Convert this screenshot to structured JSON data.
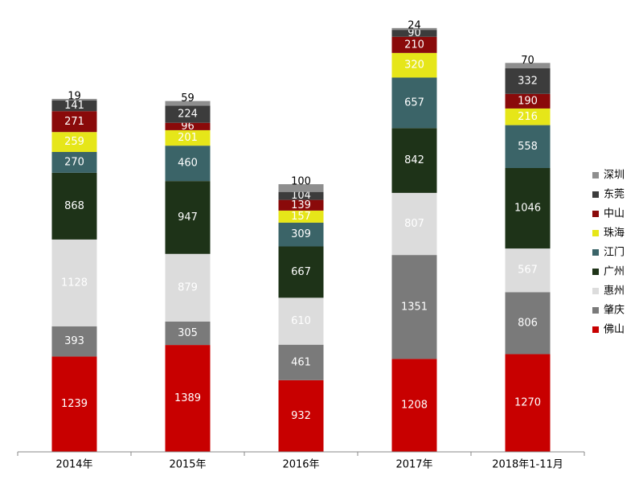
{
  "chart_data": {
    "type": "stacked_bar",
    "categories": [
      "2014年",
      "2015年",
      "2016年",
      "2017年",
      "2018年1-11月"
    ],
    "series": [
      {
        "name": "佛山",
        "color": "#c80000",
        "values": [
          1239,
          1389,
          932,
          1208,
          1270
        ]
      },
      {
        "name": "肇庆",
        "color": "#7a7a7a",
        "values": [
          393,
          305,
          461,
          1351,
          806
        ]
      },
      {
        "name": "惠州",
        "color": "#dcdcdc",
        "values": [
          1128,
          879,
          610,
          807,
          567
        ]
      },
      {
        "name": "广州",
        "color": "#1e3318",
        "values": [
          868,
          947,
          667,
          842,
          1046
        ]
      },
      {
        "name": "江门",
        "color": "#3b6468",
        "values": [
          270,
          460,
          309,
          657,
          558
        ]
      },
      {
        "name": "珠海",
        "color": "#e6e619",
        "values": [
          259,
          201,
          157,
          320,
          216
        ]
      },
      {
        "name": "中山",
        "color": "#8a0a0a",
        "values": [
          271,
          96,
          139,
          210,
          190
        ]
      },
      {
        "name": "东莞",
        "color": "#3c3c3c",
        "values": [
          141,
          224,
          104,
          90,
          332
        ]
      },
      {
        "name": "深圳",
        "color": "#8e8e8e",
        "values": [
          19,
          59,
          100,
          24,
          70
        ]
      }
    ],
    "ylim": [
      0,
      5800
    ]
  }
}
